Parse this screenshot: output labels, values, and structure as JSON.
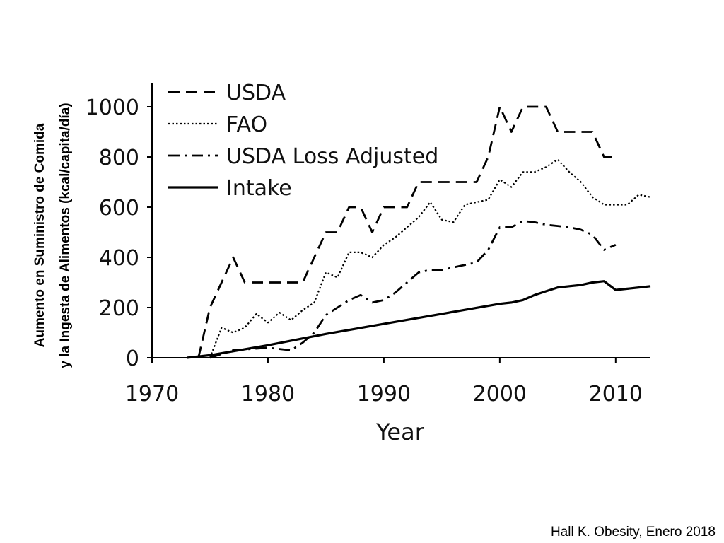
{
  "chart_data": {
    "type": "line",
    "xlabel": "Year",
    "ylabel_lines": [
      "Aumento en Suministro de Comida",
      "y la Ingesta de Alimentos (kcal/capita/día)"
    ],
    "xlim": [
      1970,
      2013
    ],
    "ylim": [
      0,
      1000
    ],
    "x_ticks": [
      1970,
      1980,
      1990,
      2000,
      2010
    ],
    "y_ticks": [
      0,
      200,
      400,
      600,
      800,
      1000
    ],
    "legend_position": "top-left",
    "grid": false,
    "series": [
      {
        "name": "USDA",
        "style": "dashed",
        "color": "#000000",
        "points": [
          [
            1974,
            0
          ],
          [
            1975,
            200
          ],
          [
            1976,
            300
          ],
          [
            1977,
            400
          ],
          [
            1978,
            300
          ],
          [
            1979,
            300
          ],
          [
            1980,
            300
          ],
          [
            1981,
            300
          ],
          [
            1982,
            300
          ],
          [
            1983,
            300
          ],
          [
            1984,
            400
          ],
          [
            1985,
            500
          ],
          [
            1986,
            500
          ],
          [
            1987,
            600
          ],
          [
            1988,
            600
          ],
          [
            1989,
            500
          ],
          [
            1990,
            600
          ],
          [
            1991,
            600
          ],
          [
            1992,
            600
          ],
          [
            1993,
            700
          ],
          [
            1994,
            700
          ],
          [
            1995,
            700
          ],
          [
            1996,
            700
          ],
          [
            1997,
            700
          ],
          [
            1998,
            700
          ],
          [
            1999,
            800
          ],
          [
            2000,
            1000
          ],
          [
            2001,
            900
          ],
          [
            2002,
            1000
          ],
          [
            2003,
            1000
          ],
          [
            2004,
            1000
          ],
          [
            2005,
            900
          ],
          [
            2006,
            900
          ],
          [
            2007,
            900
          ],
          [
            2008,
            900
          ],
          [
            2009,
            800
          ],
          [
            2010,
            800
          ]
        ]
      },
      {
        "name": "FAO",
        "style": "dotted",
        "color": "#000000",
        "points": [
          [
            1975,
            0
          ],
          [
            1976,
            120
          ],
          [
            1977,
            100
          ],
          [
            1978,
            120
          ],
          [
            1979,
            175
          ],
          [
            1980,
            140
          ],
          [
            1981,
            180
          ],
          [
            1982,
            150
          ],
          [
            1983,
            190
          ],
          [
            1984,
            220
          ],
          [
            1985,
            340
          ],
          [
            1986,
            320
          ],
          [
            1987,
            420
          ],
          [
            1988,
            420
          ],
          [
            1989,
            400
          ],
          [
            1990,
            450
          ],
          [
            1991,
            480
          ],
          [
            1992,
            520
          ],
          [
            1993,
            560
          ],
          [
            1994,
            620
          ],
          [
            1995,
            550
          ],
          [
            1996,
            540
          ],
          [
            1997,
            610
          ],
          [
            1998,
            620
          ],
          [
            1999,
            630
          ],
          [
            2000,
            710
          ],
          [
            2001,
            680
          ],
          [
            2002,
            740
          ],
          [
            2003,
            740
          ],
          [
            2004,
            760
          ],
          [
            2005,
            790
          ],
          [
            2006,
            740
          ],
          [
            2007,
            700
          ],
          [
            2008,
            640
          ],
          [
            2009,
            610
          ],
          [
            2010,
            610
          ],
          [
            2011,
            610
          ],
          [
            2012,
            650
          ],
          [
            2013,
            640
          ]
        ]
      },
      {
        "name": "USDA Loss Adjusted",
        "style": "dashdot",
        "color": "#000000",
        "points": [
          [
            1975,
            0
          ],
          [
            1977,
            30
          ],
          [
            1980,
            40
          ],
          [
            1982,
            30
          ],
          [
            1983,
            60
          ],
          [
            1984,
            100
          ],
          [
            1985,
            170
          ],
          [
            1986,
            200
          ],
          [
            1987,
            230
          ],
          [
            1988,
            250
          ],
          [
            1989,
            220
          ],
          [
            1990,
            230
          ],
          [
            1991,
            260
          ],
          [
            1992,
            300
          ],
          [
            1993,
            340
          ],
          [
            1994,
            350
          ],
          [
            1995,
            350
          ],
          [
            1996,
            360
          ],
          [
            1997,
            370
          ],
          [
            1998,
            380
          ],
          [
            1999,
            430
          ],
          [
            2000,
            520
          ],
          [
            2001,
            520
          ],
          [
            2002,
            545
          ],
          [
            2003,
            540
          ],
          [
            2004,
            530
          ],
          [
            2005,
            525
          ],
          [
            2006,
            520
          ],
          [
            2007,
            510
          ],
          [
            2008,
            490
          ],
          [
            2009,
            430
          ],
          [
            2010,
            450
          ]
        ]
      },
      {
        "name": "Intake",
        "style": "solid",
        "color": "#000000",
        "points": [
          [
            1973,
            0
          ],
          [
            1975,
            10
          ],
          [
            1980,
            50
          ],
          [
            1985,
            95
          ],
          [
            1990,
            135
          ],
          [
            1995,
            175
          ],
          [
            2000,
            215
          ],
          [
            2001,
            220
          ],
          [
            2002,
            230
          ],
          [
            2003,
            250
          ],
          [
            2004,
            265
          ],
          [
            2005,
            280
          ],
          [
            2006,
            285
          ],
          [
            2007,
            290
          ],
          [
            2008,
            300
          ],
          [
            2009,
            305
          ],
          [
            2010,
            270
          ],
          [
            2011,
            275
          ],
          [
            2012,
            280
          ],
          [
            2013,
            285
          ]
        ]
      }
    ]
  },
  "citation": "Hall K. Obesity, Enero 2018"
}
